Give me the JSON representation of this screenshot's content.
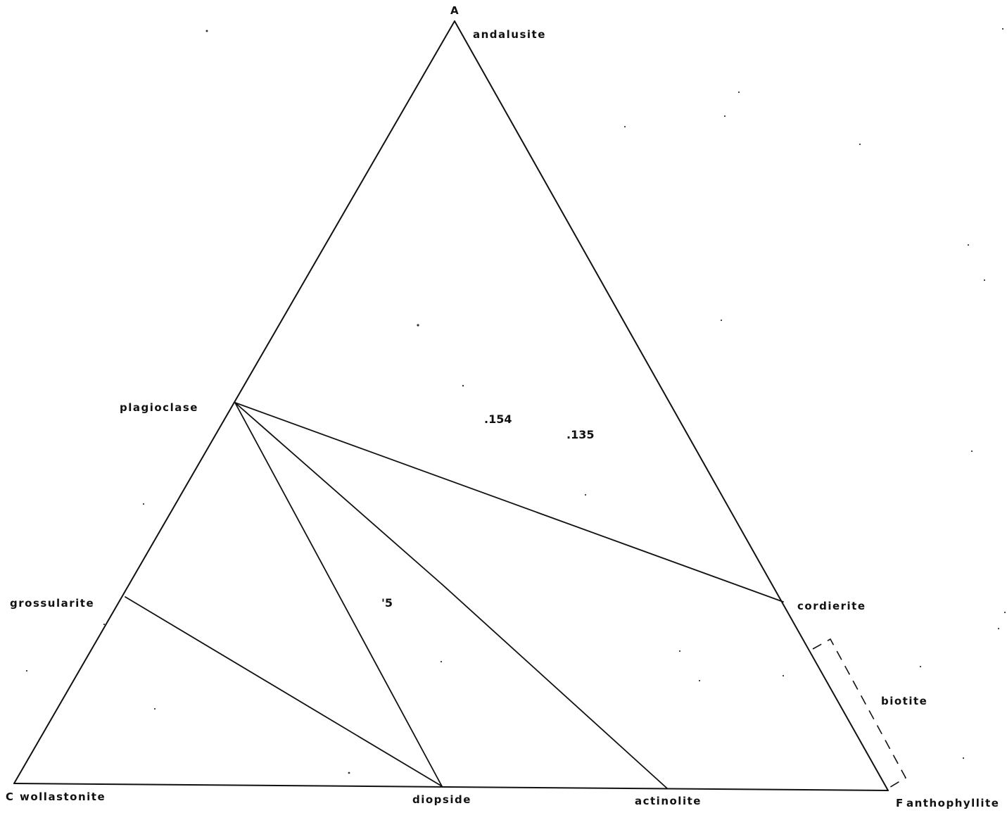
{
  "vertices": {
    "top": "A",
    "left": "C",
    "right": "F"
  },
  "minerals": {
    "andalusite": "andalusite",
    "plagioclase": "plagioclase",
    "grossularite": "grossularite",
    "wollastonite": "wollastonite",
    "diopside": "diopside",
    "actinolite": "actinolite",
    "anthophyllite": "anthophyllite",
    "cordierite": "cordierite",
    "biotite": "biotite"
  },
  "samples": {
    "s154": ".154",
    "s135": ".135",
    "s5": "'5"
  },
  "colors": {
    "ink": "#111111",
    "paper": "#ffffff"
  }
}
